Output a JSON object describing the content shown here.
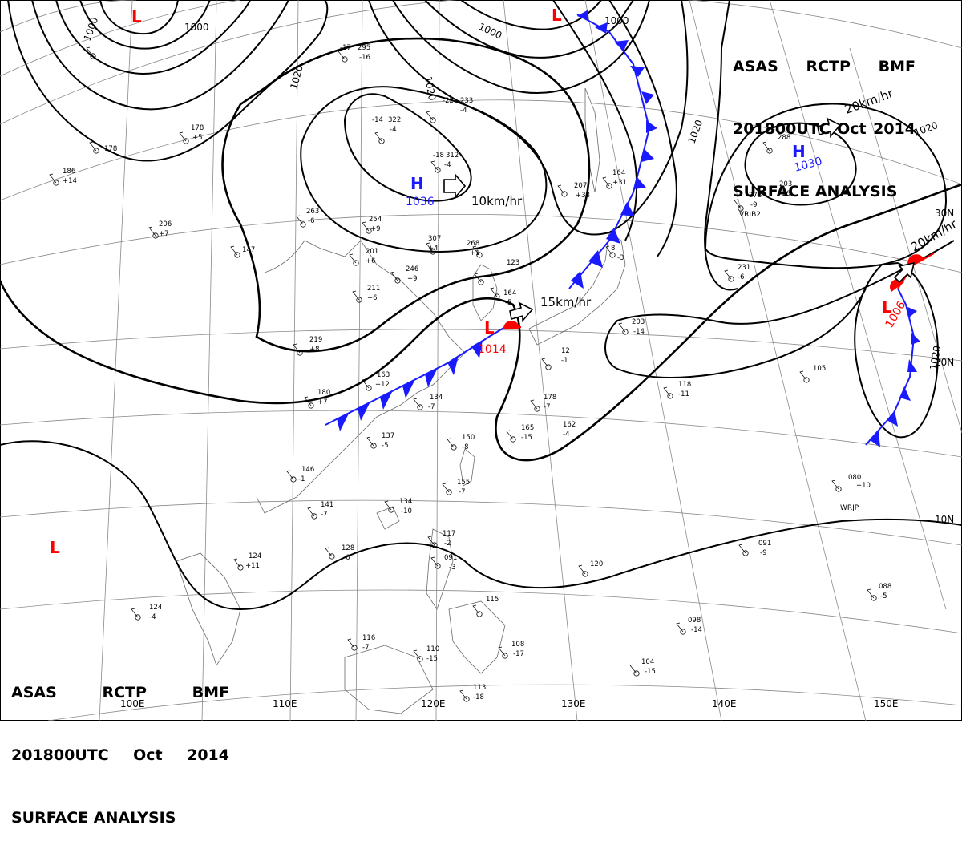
{
  "header": {
    "line1": [
      "ASAS",
      "RCTP",
      "BMF"
    ],
    "line2": [
      "201800UTC",
      "Oct",
      "2014"
    ],
    "line3": "SURFACE ANALYSIS"
  },
  "colors": {
    "cold_front": "#1a1aff",
    "warm_front": "#ff0000",
    "high_label": "#1a1aff",
    "low_label": "#ff0000",
    "isobar": "#000000",
    "grid": "#888888",
    "coast": "#666666"
  },
  "isobar_labels": [
    "1000",
    "1000",
    "1020",
    "1020",
    "1000",
    "1020",
    "1020",
    "1020",
    "1000"
  ],
  "pressure_centers": [
    {
      "type": "H",
      "value": "1036"
    },
    {
      "type": "H",
      "value": "1030"
    },
    {
      "type": "L",
      "value": "1014"
    },
    {
      "type": "L",
      "value": "1006"
    },
    {
      "type": "L",
      "value": ""
    },
    {
      "type": "L",
      "value": ""
    },
    {
      "type": "L",
      "value": ""
    }
  ],
  "motion_labels": [
    "10km/hr",
    "15km/hr",
    "20km/hr",
    "20km/hr"
  ],
  "lon_labels": [
    "100E",
    "110E",
    "120E",
    "130E",
    "140E",
    "150E"
  ],
  "lat_labels": [
    "30N",
    "20N",
    "10N"
  ],
  "station_codes": [
    "VRIB2",
    "WRJP"
  ],
  "station_obs": [
    "-17",
    "295",
    "-16",
    "-14",
    "322",
    "-4",
    "-22",
    "233",
    "-4",
    "-18",
    "312",
    "-4",
    "207",
    "+38",
    "164",
    "+31",
    "8",
    "-3",
    "268",
    "+1",
    "307",
    "+4",
    "254",
    "+9",
    "263",
    "-6",
    "201",
    "+6",
    "246",
    "+9",
    "211",
    "+6",
    "219",
    "+8",
    "163",
    "+12",
    "180",
    "+7",
    "134",
    "-7",
    "137",
    "-5",
    "150",
    "-8",
    "155",
    "-7",
    "146",
    "-1",
    "141",
    "-7",
    "134",
    "-10",
    "128",
    "-6",
    "124",
    "+11",
    "124",
    "-4",
    "117",
    "-2",
    "091",
    "-3",
    "115",
    "116",
    "-7",
    "110",
    "-15",
    "108",
    "-17",
    "113",
    "-18",
    "104",
    "-15",
    "098",
    "-14",
    "088",
    "-5",
    "080",
    "+10",
    "091",
    "-9",
    "120",
    "162",
    "-4",
    "165",
    "-15",
    "178",
    "-7",
    "203",
    "-14",
    "118",
    "-11",
    "105",
    "231",
    "-6",
    "278",
    "-9",
    "288",
    "203",
    "-16",
    "147",
    "178",
    "+5",
    "186",
    "+14",
    "206",
    "+7",
    "178",
    "123",
    "164",
    "-5",
    "12",
    "-1"
  ]
}
